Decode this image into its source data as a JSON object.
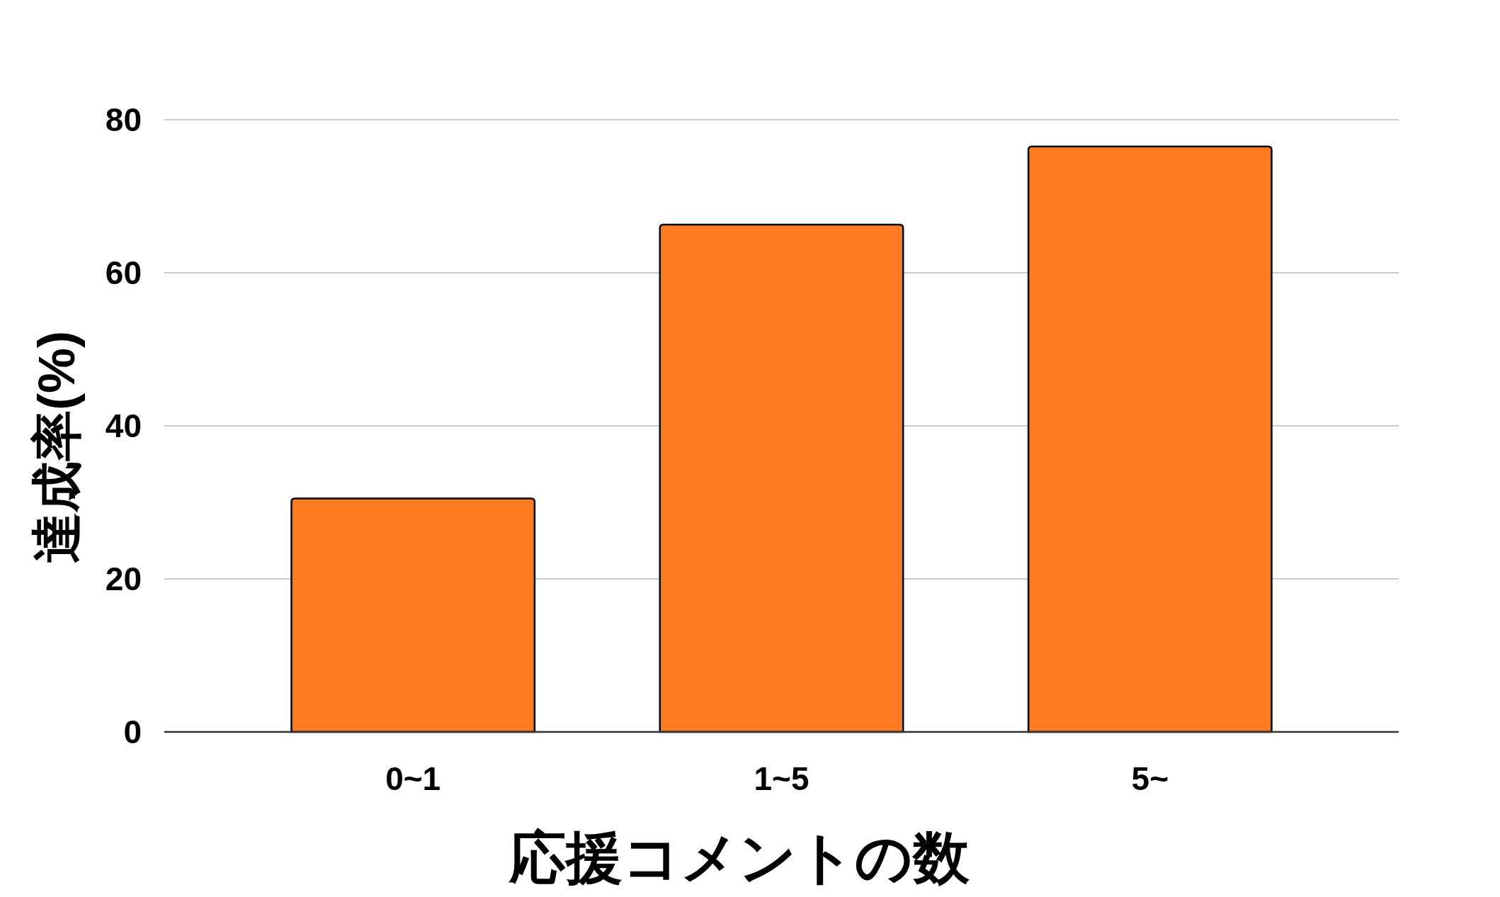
{
  "chart_data": {
    "type": "bar",
    "xlabel": "応援コメントの数",
    "ylabel": "達成率(%)",
    "categories": [
      "0~1",
      "1~5",
      "5~"
    ],
    "values": [
      30.5,
      66.3,
      76.5
    ],
    "color": "#fe7a20",
    "ylim": [
      0,
      80
    ],
    "yticks": [
      0,
      20,
      40,
      60,
      80
    ],
    "grid": "y"
  }
}
